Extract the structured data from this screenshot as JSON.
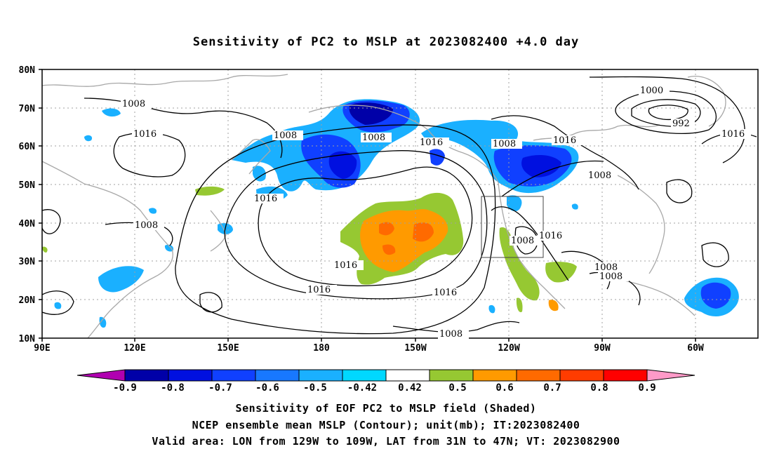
{
  "title": "Sensitivity of PC2 to MSLP at 2023082400 +4.0 day",
  "lat_labels": [
    "80N",
    "70N",
    "60N",
    "50N",
    "40N",
    "30N",
    "20N",
    "10N"
  ],
  "lon_labels": [
    "90E",
    "120E",
    "150E",
    "180",
    "150W",
    "120W",
    "90W",
    "60W"
  ],
  "contour_labels": [
    "1008",
    "1016",
    "1008",
    "1016",
    "1008",
    "1016",
    "1008",
    "1016",
    "1016",
    "1008",
    "1016",
    "1016",
    "1008",
    "1000",
    "992",
    "1016",
    "1008",
    "1016",
    "1008",
    "1008",
    "1008"
  ],
  "colorbar": {
    "labels": [
      "-0.9",
      "-0.8",
      "-0.7",
      "-0.6",
      "-0.5",
      "-0.42",
      "0.42",
      "0.5",
      "0.6",
      "0.7",
      "0.8",
      "0.9"
    ],
    "colors": [
      "#b000b0",
      "#0000a8",
      "#0010e0",
      "#1040ff",
      "#1878ff",
      "#1ab0ff",
      "#00d8ff",
      "#ffffff",
      "#96c832",
      "#ff9a00",
      "#ff6a00",
      "#ff3c00",
      "#ff0000",
      "#ff9ac8"
    ]
  },
  "caption": {
    "line1": "Sensitivity of EOF PC2 to MSLP field (Shaded)",
    "line2": "NCEP ensemble mean MSLP (Contour); unit(mb); IT:2023082400",
    "line3": "Valid area: LON from 129W to 109W, LAT from 31N to 47N; VT: 2023082900"
  }
}
